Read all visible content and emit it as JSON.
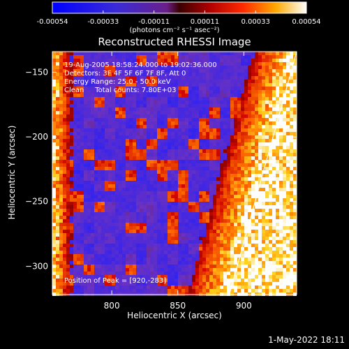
{
  "colorbar": {
    "ticks": [
      "-0.00054",
      "-0.00033",
      "-0.00011",
      "0.00011",
      "0.00033",
      "0.00054"
    ],
    "unit_label": "(photons cm⁻² s⁻¹ asec⁻²)"
  },
  "chart_data": {
    "type": "heatmap",
    "title": "Reconstructed RHESSI Image",
    "xlabel": "Heliocentric X (arcsec)",
    "ylabel": "Heliocentric Y (arcsec)",
    "xlim": [
      755,
      940
    ],
    "ylim": [
      -322,
      -134
    ],
    "x_ticks": [
      800,
      850,
      900
    ],
    "y_ticks": [
      -150,
      -200,
      -250,
      -300
    ],
    "color_range": [
      -0.00054,
      0.00054
    ],
    "colormap": "blue-purple-red-yellow-white",
    "peak": [
      920,
      -283
    ],
    "limb_line": [
      [
        889,
        -322
      ],
      [
        940,
        -134
      ]
    ],
    "colors": {
      "negative": "#2b2bff",
      "zero": "#7a3fb0",
      "positive": "#ff2a00",
      "max": "#ffffff"
    }
  },
  "info": {
    "line1": "19-Aug-2005 18:58:24.000 to 19:02:36.000",
    "line2": "Detectors: 3F 4F 5F 6F 7F 8F, Att 0",
    "line3": "Energy Range: 25.0 - 50.0 keV",
    "line4": "Clean     Total counts: 7.80E+03",
    "peak_label": "Position of Peak = [920,-283]"
  },
  "footer": {
    "date": "1-May-2022 18:11"
  }
}
